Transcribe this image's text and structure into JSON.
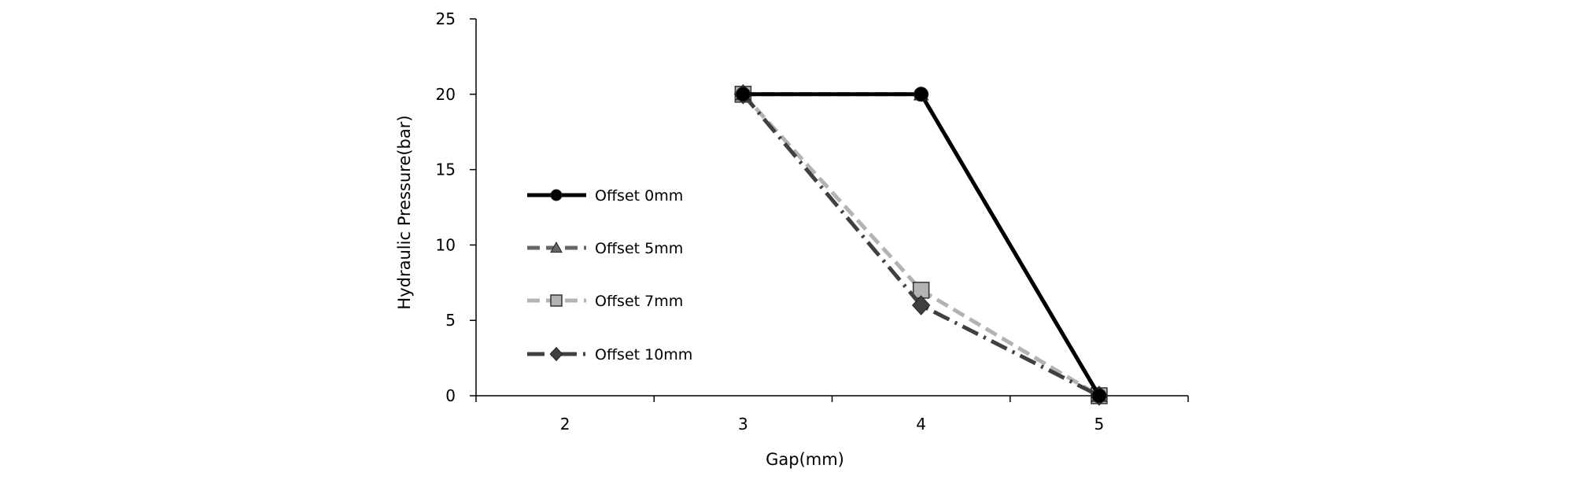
{
  "chart_data": {
    "type": "line",
    "title": "",
    "xlabel": "Gap(mm)",
    "ylabel": "Hydraulic Pressure(bar)",
    "x": [
      2,
      3,
      4,
      5
    ],
    "xticks": [
      "2",
      "3",
      "4",
      "5"
    ],
    "yticks": [
      "0",
      "5",
      "10",
      "15",
      "20",
      "25"
    ],
    "ylim": [
      0,
      25
    ],
    "grid": false,
    "legend_position": "left",
    "series": [
      {
        "name": "Offset 0mm",
        "values": [
          null,
          20,
          20,
          0
        ],
        "color": "#000000",
        "dash": "solid",
        "marker": "circle"
      },
      {
        "name": "Offset 5mm",
        "values": [
          null,
          20,
          20,
          0
        ],
        "color": "#666666",
        "dash": "dashed",
        "marker": "triangle"
      },
      {
        "name": "Offset 7mm",
        "values": [
          null,
          20,
          7,
          0
        ],
        "color": "#b3b3b3",
        "dash": "dashed",
        "marker": "square"
      },
      {
        "name": "Offset 10mm",
        "values": [
          null,
          20,
          6,
          0
        ],
        "color": "#404040",
        "dash": "dash-dot",
        "marker": "diamond"
      }
    ]
  }
}
